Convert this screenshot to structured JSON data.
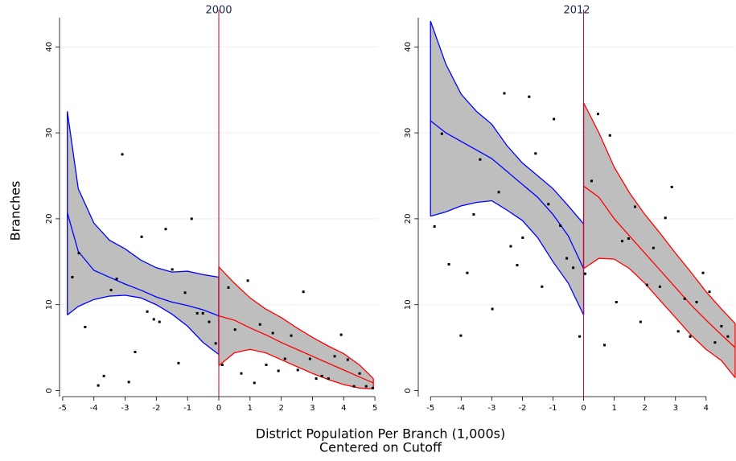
{
  "chart_data": [
    {
      "type": "scatter",
      "title": "2000",
      "xlim": [
        -5.1,
        5.1
      ],
      "ylim": [
        -0.7,
        43.4
      ],
      "xticks": [
        -5,
        -4,
        -3,
        -2,
        -1,
        0,
        1,
        2,
        3,
        4,
        5
      ],
      "yticks": [
        0,
        10,
        20,
        30,
        40
      ],
      "grid": true,
      "cutoff": 0,
      "cutoff_color": "#cc0033",
      "point_color": "#000000",
      "band_color": "#bebebe",
      "points": {
        "x": [
          -4.69,
          -4.48,
          -4.28,
          -3.86,
          -3.68,
          -3.45,
          -3.27,
          -3.09,
          -2.88,
          -2.68,
          -2.47,
          -2.29,
          -2.08,
          -1.9,
          -1.7,
          -1.49,
          -1.29,
          -1.08,
          -0.87,
          -0.69,
          -0.51,
          -0.31,
          -0.1,
          0.11,
          0.31,
          0.52,
          0.72,
          0.93,
          1.14,
          1.32,
          1.52,
          1.73,
          1.91,
          2.12,
          2.32,
          2.53,
          2.71,
          2.92,
          3.12,
          3.3,
          3.51,
          3.71,
          3.92,
          4.13,
          4.33,
          4.51,
          4.72,
          4.93
        ],
        "y": [
          13.2,
          16.0,
          7.4,
          0.6,
          1.7,
          11.7,
          13.0,
          27.5,
          1.0,
          4.5,
          17.9,
          9.2,
          8.3,
          8.0,
          18.8,
          14.1,
          3.2,
          11.4,
          20.0,
          9.0,
          9.0,
          8.0,
          5.5,
          3.0,
          12.0,
          7.1,
          2.0,
          12.8,
          0.9,
          7.7,
          3.0,
          6.7,
          2.3,
          3.7,
          6.4,
          2.4,
          11.5,
          3.7,
          1.4,
          1.7,
          1.4,
          4.0,
          6.5,
          3.6,
          0.5,
          2.0,
          0.5,
          0.3
        ]
      },
      "fits": [
        {
          "color": "#0000ff",
          "x": [
            -4.85,
            -4.5,
            -4.0,
            -3.5,
            -3.0,
            -2.5,
            -2.0,
            -1.5,
            -1.0,
            -0.5,
            0
          ],
          "upper": [
            32.5,
            23.5,
            19.5,
            17.5,
            16.5,
            15.2,
            14.3,
            13.8,
            13.9,
            13.5,
            13.2
          ],
          "fit": [
            20.7,
            16.2,
            14.0,
            13.2,
            12.4,
            11.7,
            10.9,
            10.3,
            9.9,
            9.4,
            8.7
          ],
          "lower": [
            8.8,
            9.8,
            10.6,
            11.0,
            11.1,
            10.8,
            10.0,
            8.9,
            7.5,
            5.6,
            4.2
          ]
        },
        {
          "color": "#ff0000",
          "x": [
            0,
            0.5,
            1.0,
            1.5,
            2.0,
            2.5,
            3.0,
            3.5,
            4.0,
            4.5,
            4.95
          ],
          "upper": [
            14.4,
            12.5,
            10.8,
            9.5,
            8.5,
            7.3,
            6.2,
            5.2,
            4.3,
            3.0,
            1.4
          ],
          "fit": [
            8.7,
            8.2,
            7.3,
            6.5,
            5.6,
            4.8,
            4.0,
            3.2,
            2.4,
            1.6,
            0.9
          ],
          "lower": [
            2.9,
            4.4,
            4.8,
            4.4,
            3.6,
            2.8,
            2.0,
            1.3,
            0.7,
            0.3,
            0.2
          ]
        }
      ]
    },
    {
      "type": "scatter",
      "title": "2012",
      "xlim": [
        -5.4,
        4.95
      ],
      "ylim": [
        -0.7,
        43.4
      ],
      "xticks": [
        -5,
        -4,
        -3,
        -2,
        -1,
        0,
        1,
        2,
        3,
        4
      ],
      "yticks": [
        0,
        10,
        20,
        30,
        40
      ],
      "grid": true,
      "cutoff": 0,
      "cutoff_color": "#cc0033",
      "point_color": "#000000",
      "band_color": "#bebebe",
      "points": {
        "x": [
          -4.87,
          -4.63,
          -4.4,
          -4.01,
          -3.8,
          -3.59,
          -3.38,
          -2.98,
          -2.77,
          -2.59,
          -2.38,
          -2.17,
          -1.99,
          -1.78,
          -1.57,
          -1.36,
          -1.15,
          -0.97,
          -0.76,
          -0.55,
          -0.34,
          -0.13,
          0.05,
          0.26,
          0.47,
          0.68,
          0.86,
          1.07,
          1.26,
          1.47,
          1.68,
          1.86,
          2.07,
          2.28,
          2.49,
          2.67,
          2.88,
          3.09,
          3.3,
          3.48,
          3.69,
          3.9,
          4.11,
          4.29,
          4.5,
          4.71
        ],
        "y": [
          19.1,
          29.9,
          14.7,
          6.4,
          13.7,
          20.5,
          26.9,
          9.5,
          23.1,
          34.6,
          16.8,
          14.6,
          17.8,
          34.2,
          27.6,
          12.1,
          21.7,
          31.6,
          19.2,
          15.4,
          14.3,
          6.3,
          13.6,
          24.4,
          32.2,
          5.3,
          29.7,
          10.3,
          17.4,
          17.7,
          21.4,
          8.0,
          12.3,
          16.6,
          12.1,
          20.1,
          23.7,
          6.9,
          10.7,
          6.3,
          10.3,
          13.7,
          11.5,
          5.6,
          7.5,
          6.3
        ]
      },
      "fits": [
        {
          "color": "#0000ff",
          "x": [
            -5.0,
            -4.5,
            -4.0,
            -3.5,
            -3.0,
            -2.5,
            -2.0,
            -1.5,
            -1.0,
            -0.5,
            0
          ],
          "upper": [
            43.0,
            38.0,
            34.5,
            32.5,
            31.0,
            28.5,
            26.5,
            25.0,
            23.5,
            21.5,
            19.4
          ],
          "fit": [
            31.4,
            30.0,
            29.0,
            28.0,
            27.0,
            25.5,
            24.0,
            22.5,
            20.5,
            18.0,
            14.2
          ],
          "lower": [
            20.3,
            20.8,
            21.5,
            21.9,
            22.1,
            21.0,
            19.8,
            17.8,
            15.0,
            12.5,
            8.8
          ]
        },
        {
          "color": "#ff0000",
          "x": [
            0,
            0.5,
            1.0,
            1.5,
            2.0,
            2.5,
            3.0,
            3.5,
            4.0,
            4.5,
            4.95
          ],
          "upper": [
            33.5,
            30.0,
            26.0,
            23.0,
            20.5,
            18.3,
            16.0,
            13.8,
            11.5,
            9.5,
            7.8
          ],
          "fit": [
            23.8,
            22.5,
            20.0,
            18.0,
            16.0,
            14.0,
            12.0,
            10.0,
            8.2,
            6.5,
            5.0
          ],
          "lower": [
            14.2,
            15.4,
            15.3,
            14.2,
            12.5,
            10.5,
            8.5,
            6.5,
            4.8,
            3.5,
            1.5
          ]
        }
      ]
    }
  ],
  "ylabel": "Branches",
  "xlabel": [
    "District Population Per Branch (1,000s)",
    "Centered on Cutoff"
  ]
}
